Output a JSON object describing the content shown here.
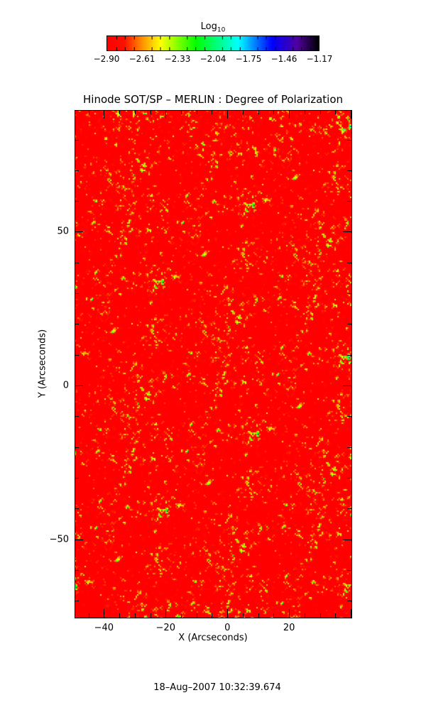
{
  "chart_data": {
    "type": "heatmap",
    "title": "Hinode SOT/SP – MERLIN : Degree of Polarization",
    "xlabel": "X (Arcseconds)",
    "ylabel": "Y (Arcseconds)",
    "xlim": [
      -49.5,
      40.2
    ],
    "ylim": [
      -75.5,
      89.6
    ],
    "xticks": [
      -40,
      -20,
      0,
      20
    ],
    "xtick_labels": [
      "−40",
      "−20",
      "0",
      "20"
    ],
    "yticks": [
      -50,
      0,
      50
    ],
    "ytick_labels": [
      "−50",
      "0",
      "50"
    ],
    "colorbar": {
      "title_main": "Log",
      "title_sub": "10",
      "range": [
        -2.9,
        -1.17
      ],
      "tick_labels": [
        "−2.90",
        "−2.61",
        "−2.33",
        "−2.04",
        "−1.75",
        "−1.46",
        "−1.17"
      ],
      "colormap": [
        {
          "pos": 0.0,
          "color": "#ff0000"
        },
        {
          "pos": 0.08,
          "color": "#ff1000"
        },
        {
          "pos": 0.17,
          "color": "#ff9900"
        },
        {
          "pos": 0.25,
          "color": "#ffff00"
        },
        {
          "pos": 0.42,
          "color": "#00ff00"
        },
        {
          "pos": 0.62,
          "color": "#00ffff"
        },
        {
          "pos": 0.78,
          "color": "#0000ff"
        },
        {
          "pos": 0.9,
          "color": "#5000a0"
        },
        {
          "pos": 1.0,
          "color": "#000000"
        }
      ]
    },
    "timestamp": "18–Aug–2007 10:32:39.674"
  }
}
